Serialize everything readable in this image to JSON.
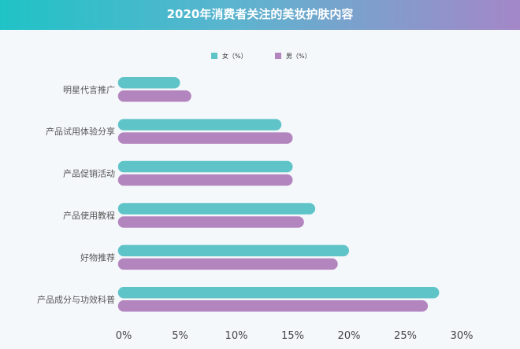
{
  "header": {
    "title": "2020年消费者关注的美妆护肤内容"
  },
  "chart_data": {
    "type": "bar",
    "orientation": "horizontal",
    "title": "2020年消费者关注的美妆护肤内容",
    "categories": [
      "明星代言推广",
      "产品试用体验分享",
      "产品促销活动",
      "产品使用教程",
      "好物推荐",
      "产品成分与功效科普"
    ],
    "series": [
      {
        "name": "女（%）",
        "color": "#5fc4c8",
        "values": [
          5,
          14,
          15,
          17,
          20,
          28
        ]
      },
      {
        "name": "男（%）",
        "color": "#b385bf",
        "values": [
          6,
          15,
          15,
          16,
          19,
          27
        ]
      }
    ],
    "xlim": [
      0,
      30
    ],
    "x_ticks": [
      "0%",
      "5%",
      "10%",
      "15%",
      "20%",
      "25%",
      "30%"
    ],
    "legend_position": "top-center",
    "grid": false
  }
}
